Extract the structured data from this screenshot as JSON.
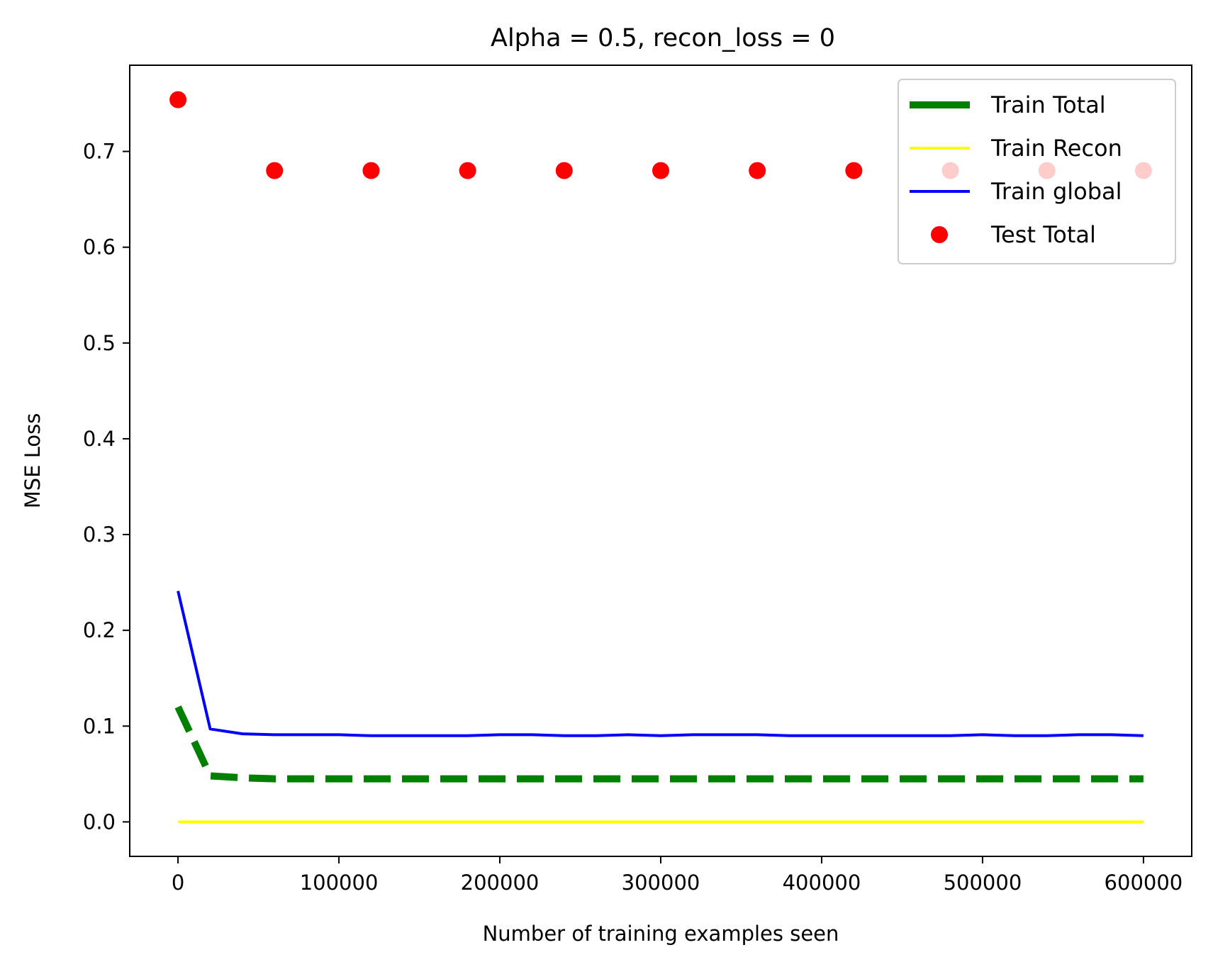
{
  "chart_data": {
    "type": "line",
    "title": "Alpha = 0.5, recon_loss = 0",
    "xlabel": "Number of training examples seen",
    "ylabel": "MSE Loss",
    "xlim": [
      -30000,
      630000
    ],
    "ylim": [
      -0.036,
      0.79
    ],
    "xticks": [
      0,
      100000,
      200000,
      300000,
      400000,
      500000,
      600000
    ],
    "xtick_labels": [
      "0",
      "100000",
      "200000",
      "300000",
      "400000",
      "500000",
      "600000"
    ],
    "yticks": [
      0.0,
      0.1,
      0.2,
      0.3,
      0.4,
      0.5,
      0.6,
      0.7
    ],
    "ytick_labels": [
      "0.0",
      "0.1",
      "0.2",
      "0.3",
      "0.4",
      "0.5",
      "0.6",
      "0.7"
    ],
    "grid": false,
    "legend_position": "top-right",
    "series": [
      {
        "name": "Train Total",
        "style": "dashed",
        "color": "#008000",
        "x": [
          0,
          20000,
          40000,
          60000,
          80000,
          100000,
          120000,
          140000,
          160000,
          180000,
          200000,
          220000,
          240000,
          260000,
          280000,
          300000,
          320000,
          340000,
          360000,
          380000,
          400000,
          420000,
          440000,
          460000,
          480000,
          500000,
          520000,
          540000,
          560000,
          580000,
          600000
        ],
        "y": [
          0.12,
          0.048,
          0.046,
          0.045,
          0.045,
          0.045,
          0.045,
          0.045,
          0.045,
          0.045,
          0.045,
          0.045,
          0.045,
          0.045,
          0.045,
          0.045,
          0.045,
          0.045,
          0.045,
          0.045,
          0.045,
          0.045,
          0.045,
          0.045,
          0.045,
          0.045,
          0.045,
          0.045,
          0.045,
          0.045,
          0.045
        ]
      },
      {
        "name": "Train Recon",
        "style": "solid",
        "color": "#ffff00",
        "x": [
          0,
          20000,
          40000,
          60000,
          80000,
          100000,
          120000,
          140000,
          160000,
          180000,
          200000,
          220000,
          240000,
          260000,
          280000,
          300000,
          320000,
          340000,
          360000,
          380000,
          400000,
          420000,
          440000,
          460000,
          480000,
          500000,
          520000,
          540000,
          560000,
          580000,
          600000
        ],
        "y": [
          0,
          0,
          0,
          0,
          0,
          0,
          0,
          0,
          0,
          0,
          0,
          0,
          0,
          0,
          0,
          0,
          0,
          0,
          0,
          0,
          0,
          0,
          0,
          0,
          0,
          0,
          0,
          0,
          0,
          0,
          0
        ]
      },
      {
        "name": "Train global",
        "style": "solid",
        "color": "#0000ff",
        "x": [
          0,
          20000,
          40000,
          60000,
          80000,
          100000,
          120000,
          140000,
          160000,
          180000,
          200000,
          220000,
          240000,
          260000,
          280000,
          300000,
          320000,
          340000,
          360000,
          380000,
          400000,
          420000,
          440000,
          460000,
          480000,
          500000,
          520000,
          540000,
          560000,
          580000,
          600000
        ],
        "y": [
          0.241,
          0.097,
          0.092,
          0.091,
          0.091,
          0.091,
          0.09,
          0.09,
          0.09,
          0.09,
          0.091,
          0.091,
          0.09,
          0.09,
          0.091,
          0.09,
          0.091,
          0.091,
          0.091,
          0.09,
          0.09,
          0.09,
          0.09,
          0.09,
          0.09,
          0.091,
          0.09,
          0.09,
          0.091,
          0.091,
          0.09
        ]
      },
      {
        "name": "Test Total",
        "style": "scatter",
        "color": "#ff0000",
        "x": [
          0,
          60000,
          120000,
          180000,
          240000,
          300000,
          360000,
          420000,
          480000,
          540000,
          600000
        ],
        "y": [
          0.754,
          0.68,
          0.68,
          0.68,
          0.68,
          0.68,
          0.68,
          0.68,
          0.68,
          0.68,
          0.68
        ]
      }
    ]
  }
}
